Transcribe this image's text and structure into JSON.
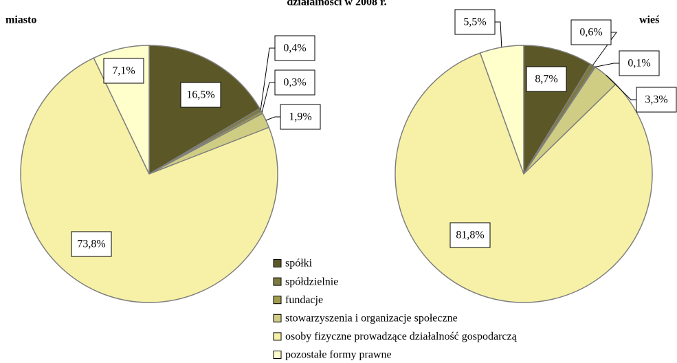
{
  "title": "działalności w 2008 r.",
  "chart_data": [
    {
      "type": "pie",
      "title": "miasto",
      "categories": [
        "spółki",
        "spółdzielnie",
        "fundacje",
        "stowarzyszenia i organizacje społeczne",
        "osoby fizyczne prowadzące działalność gospodarczą",
        "pozostałe formy prawne"
      ],
      "values": [
        16.5,
        0.4,
        0.3,
        1.9,
        73.8,
        7.1
      ],
      "value_labels": [
        "16,5%",
        "0,4%",
        "0,3%",
        "1,9%",
        "73,8%",
        "7,1%"
      ],
      "colors": [
        "#5b5727",
        "#7d7a3e",
        "#a09c4c",
        "#cfcd84",
        "#f6f1a6",
        "#ffffcc"
      ]
    },
    {
      "type": "pie",
      "title": "wieś",
      "categories": [
        "spółki",
        "spółdzielnie",
        "fundacje",
        "stowarzyszenia i organizacje społeczne",
        "osoby fizyczne prowadzące działalność gospodarczą",
        "pozostałe formy prawne"
      ],
      "values": [
        8.7,
        0.6,
        0.1,
        3.3,
        81.8,
        5.5
      ],
      "value_labels": [
        "8,7%",
        "0,6%",
        "0,1%",
        "3,3%",
        "81,8%",
        "5,5%"
      ],
      "colors": [
        "#5b5727",
        "#7d7a3e",
        "#a09c4c",
        "#cfcd84",
        "#f6f1a6",
        "#ffffcc"
      ]
    }
  ]
}
